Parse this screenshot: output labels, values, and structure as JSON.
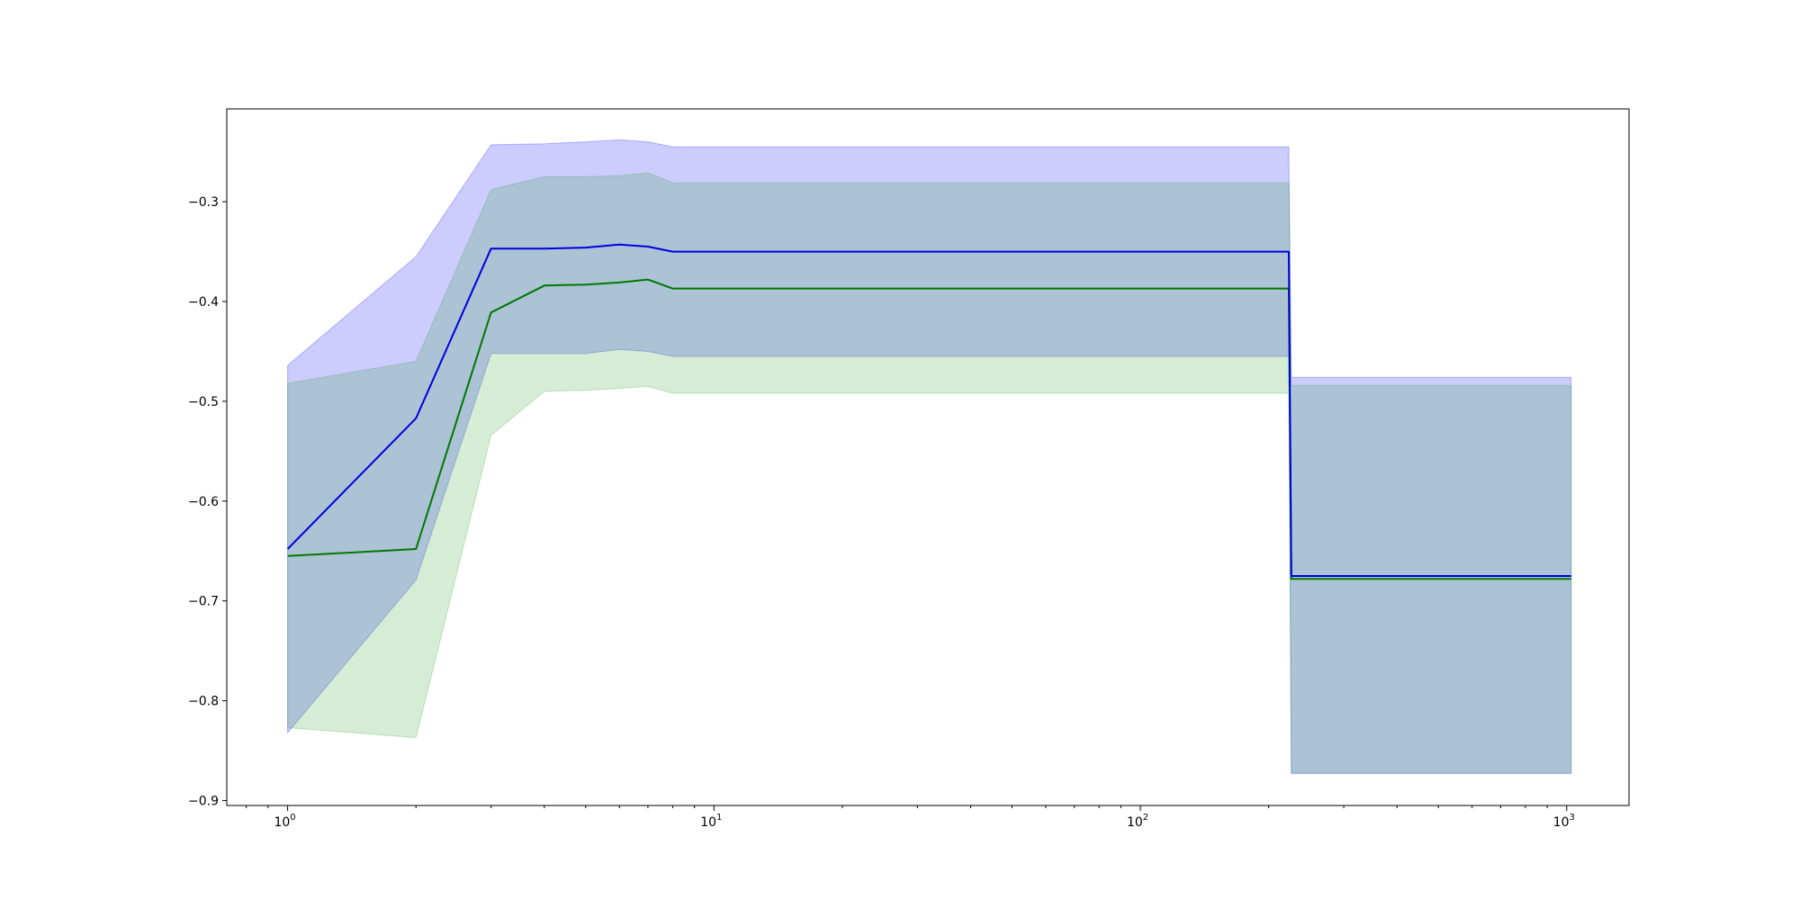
{
  "chart_data": {
    "type": "line",
    "title": "",
    "xlabel": "",
    "ylabel": "",
    "xscale": "log",
    "xlim": [
      0.72,
      1400
    ],
    "ylim": [
      -0.905,
      -0.207
    ],
    "grid": false,
    "legend": "none",
    "x_ticks": [
      {
        "base": "10",
        "exp": "0",
        "value": 1
      },
      {
        "base": "10",
        "exp": "1",
        "value": 10
      },
      {
        "base": "10",
        "exp": "2",
        "value": 100
      },
      {
        "base": "10",
        "exp": "3",
        "value": 1000
      }
    ],
    "y_ticks": [
      "−0.3",
      "−0.4",
      "−0.5",
      "−0.6",
      "−0.7",
      "−0.8",
      "−0.9"
    ],
    "y_tick_values": [
      -0.3,
      -0.4,
      -0.5,
      -0.6,
      -0.7,
      -0.8,
      -0.9
    ],
    "series": [
      {
        "color": "#0000dd",
        "band_color": "#0000ff",
        "x": [
          1,
          2,
          3,
          4,
          5,
          6,
          7,
          8,
          223,
          226,
          1024
        ],
        "mean": [
          -0.648,
          -0.517,
          -0.347,
          -0.347,
          -0.346,
          -0.343,
          -0.345,
          -0.35,
          -0.35,
          -0.675,
          -0.675
        ],
        "upper": [
          -0.464,
          -0.355,
          -0.243,
          -0.242,
          -0.24,
          -0.238,
          -0.24,
          -0.245,
          -0.245,
          -0.476,
          -0.476
        ],
        "lower": [
          -0.832,
          -0.679,
          -0.452,
          -0.452,
          -0.452,
          -0.448,
          -0.45,
          -0.455,
          -0.455,
          -0.873,
          -0.873
        ]
      },
      {
        "color": "#007700",
        "band_color": "#2ca02c",
        "x": [
          1,
          2,
          3,
          4,
          5,
          6,
          7,
          8,
          223,
          226,
          1024
        ],
        "mean": [
          -0.655,
          -0.648,
          -0.411,
          -0.384,
          -0.383,
          -0.381,
          -0.378,
          -0.387,
          -0.387,
          -0.678,
          -0.678
        ],
        "upper": [
          -0.482,
          -0.46,
          -0.288,
          -0.275,
          -0.275,
          -0.274,
          -0.271,
          -0.281,
          -0.281,
          -0.484,
          -0.484
        ],
        "lower": [
          -0.827,
          -0.837,
          -0.534,
          -0.49,
          -0.489,
          -0.487,
          -0.485,
          -0.492,
          -0.492,
          -0.872,
          -0.872
        ]
      }
    ]
  }
}
